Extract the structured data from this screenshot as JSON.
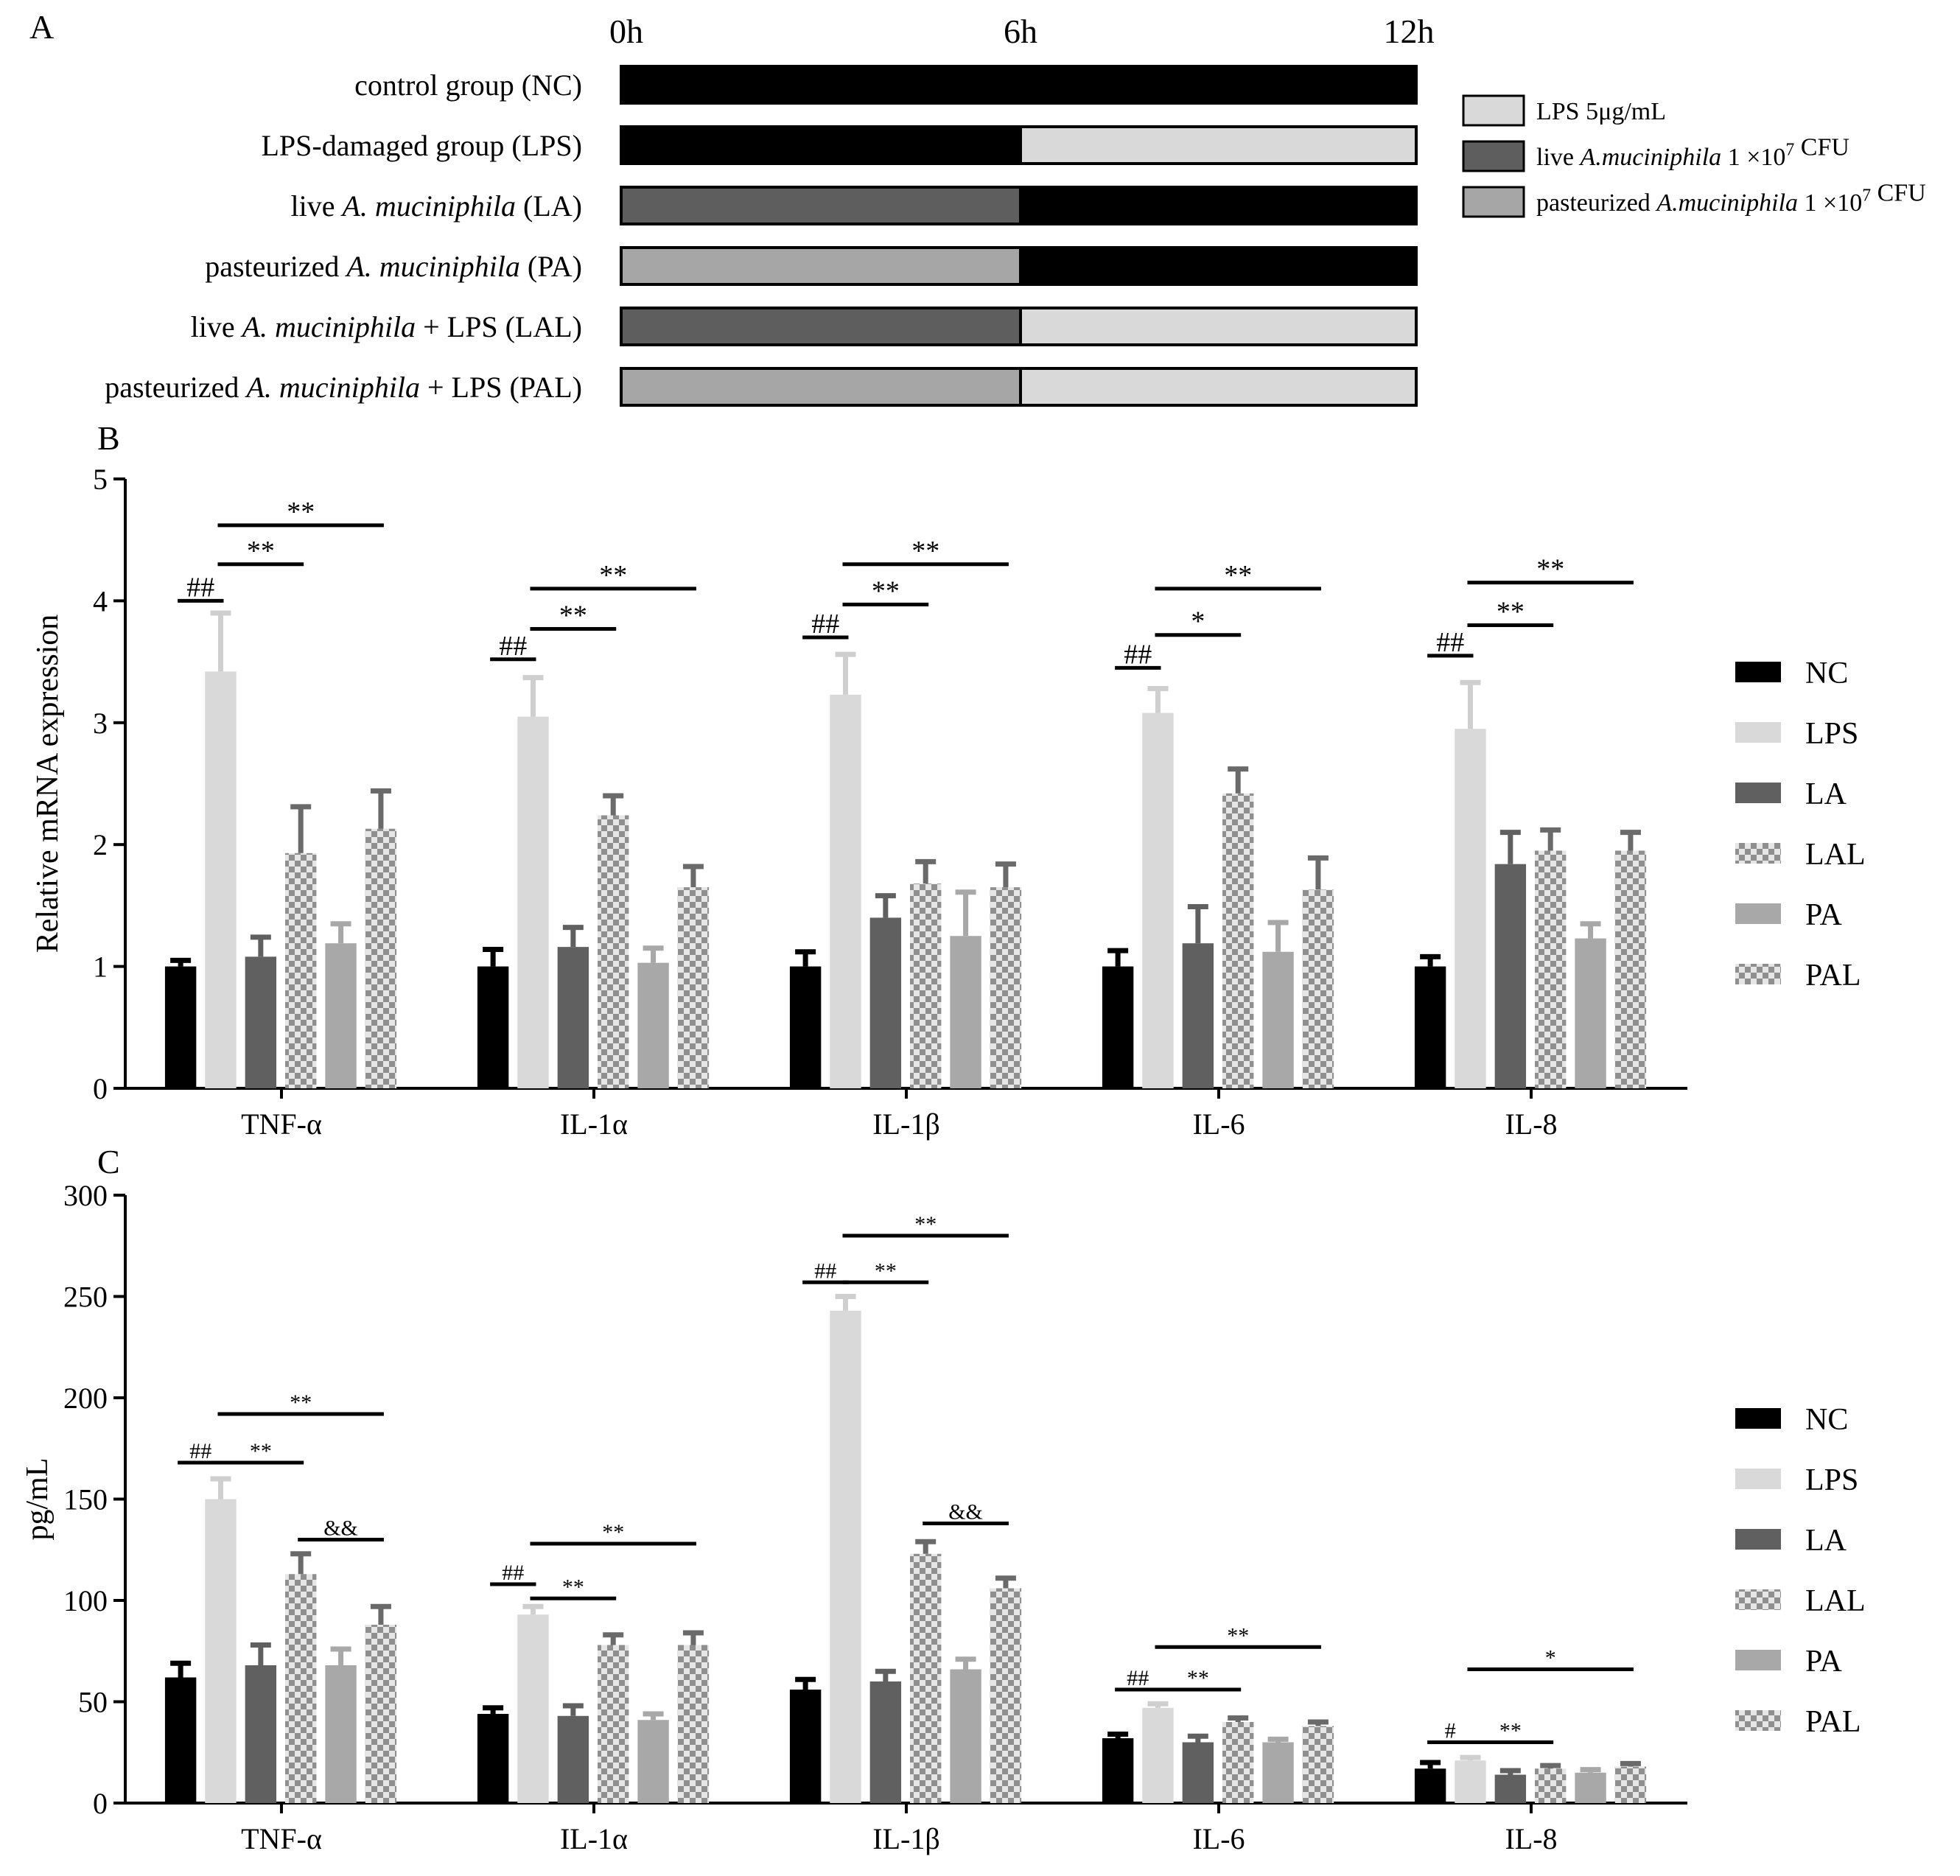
{
  "colors": {
    "NC": "#000000",
    "LPS": "#d9d9d9",
    "LA": "#606060",
    "LAL": "#777777",
    "PA": "#a8a8a8",
    "PAL": "#8a8a8a",
    "check_light": "#e6e6e6",
    "check_dark": "#8f8f8f",
    "timeline_dark": "#000000",
    "timeline_LPS": "#d9d9d9",
    "timeline_LA": "#5e5e5e",
    "timeline_PA": "#a6a6a6"
  },
  "panel_a": {
    "label": "A",
    "time_labels": [
      "0h",
      "6h",
      "12h"
    ],
    "rows": [
      {
        "parts": [
          {
            "t": "control group (NC)"
          }
        ],
        "seg1": "dark",
        "seg2": "dark"
      },
      {
        "parts": [
          {
            "t": "LPS-damaged group (LPS)"
          }
        ],
        "seg1": "dark",
        "seg2": "lps"
      },
      {
        "parts": [
          {
            "t": "live "
          },
          {
            "t": "A. muciniphila",
            "i": true
          },
          {
            "t": " (LA)"
          }
        ],
        "seg1": "la",
        "seg2": "dark"
      },
      {
        "parts": [
          {
            "t": "pasteurized "
          },
          {
            "t": "A. muciniphila",
            "i": true
          },
          {
            "t": " (PA)"
          }
        ],
        "seg1": "pa",
        "seg2": "dark"
      },
      {
        "parts": [
          {
            "t": "live "
          },
          {
            "t": "A. muciniphila",
            "i": true
          },
          {
            "t": " + LPS (LAL)"
          }
        ],
        "seg1": "la",
        "seg2": "lps"
      },
      {
        "parts": [
          {
            "t": "pasteurized "
          },
          {
            "t": "A. muciniphila",
            "i": true
          },
          {
            "t": " + LPS (PAL)"
          }
        ],
        "seg1": "pa",
        "seg2": "lps"
      }
    ],
    "legend": [
      {
        "key": "lps",
        "parts": [
          {
            "t": "LPS 5μg/mL"
          }
        ]
      },
      {
        "key": "la",
        "parts": [
          {
            "t": "live "
          },
          {
            "t": "A.muciniphila",
            "i": true
          },
          {
            "t": " 1 ×10"
          },
          {
            "t": "7",
            "sup": true
          },
          {
            "t": " CFU"
          }
        ]
      },
      {
        "key": "pa",
        "parts": [
          {
            "t": "pasteurized "
          },
          {
            "t": "A.muciniphila",
            "i": true
          },
          {
            "t": " 1 ×10"
          },
          {
            "t": "7",
            "sup": true
          },
          {
            "t": " CFU"
          }
        ]
      }
    ]
  },
  "chart_data": [
    {
      "panel": "B",
      "type": "bar",
      "title": "",
      "xlabel": "",
      "ylabel": "Relative mRNA expression",
      "ylim": [
        0,
        5
      ],
      "yticks": [
        "0",
        "1",
        "2",
        "3",
        "4",
        "5"
      ],
      "categories": [
        "TNF-α",
        "IL-1α",
        "IL-1β",
        "IL-6",
        "IL-8"
      ],
      "series": [
        {
          "name": "NC",
          "values": [
            1.0,
            1.0,
            1.0,
            1.0,
            1.0
          ],
          "errors": [
            0.05,
            0.14,
            0.12,
            0.13,
            0.08
          ]
        },
        {
          "name": "LPS",
          "values": [
            3.42,
            3.05,
            3.23,
            3.08,
            2.95
          ],
          "errors": [
            0.48,
            0.32,
            0.33,
            0.2,
            0.38
          ]
        },
        {
          "name": "LA",
          "values": [
            1.08,
            1.16,
            1.4,
            1.19,
            1.84
          ],
          "errors": [
            0.16,
            0.16,
            0.18,
            0.3,
            0.26
          ]
        },
        {
          "name": "LAL",
          "values": [
            1.93,
            2.24,
            1.68,
            2.42,
            1.95
          ],
          "errors": [
            0.38,
            0.16,
            0.18,
            0.2,
            0.17
          ]
        },
        {
          "name": "PA",
          "values": [
            1.19,
            1.03,
            1.25,
            1.12,
            1.23
          ],
          "errors": [
            0.16,
            0.12,
            0.36,
            0.24,
            0.12
          ]
        },
        {
          "name": "PAL",
          "values": [
            2.13,
            1.65,
            1.65,
            1.63,
            1.95
          ],
          "errors": [
            0.31,
            0.17,
            0.19,
            0.26,
            0.15
          ]
        }
      ],
      "annotations": [
        {
          "cat": 0,
          "from": "NC",
          "to": "LPS",
          "text": "##",
          "y": 4.0
        },
        {
          "cat": 0,
          "from": "LPS",
          "to": "LAL",
          "text": "**",
          "y": 4.3
        },
        {
          "cat": 0,
          "from": "LPS",
          "to": "PAL",
          "text": "**",
          "y": 4.62
        },
        {
          "cat": 1,
          "from": "NC",
          "to": "LPS",
          "text": "##",
          "y": 3.52
        },
        {
          "cat": 1,
          "from": "LPS",
          "to": "LAL",
          "text": "**",
          "y": 3.77
        },
        {
          "cat": 1,
          "from": "LPS",
          "to": "PAL",
          "text": "**",
          "y": 4.1
        },
        {
          "cat": 2,
          "from": "NC",
          "to": "LPS",
          "text": "##",
          "y": 3.7
        },
        {
          "cat": 2,
          "from": "LPS",
          "to": "LAL",
          "text": "**",
          "y": 3.97
        },
        {
          "cat": 2,
          "from": "LPS",
          "to": "PAL",
          "text": "**",
          "y": 4.3
        },
        {
          "cat": 3,
          "from": "NC",
          "to": "LPS",
          "text": "##",
          "y": 3.45
        },
        {
          "cat": 3,
          "from": "LPS",
          "to": "LAL",
          "text": "*",
          "y": 3.72
        },
        {
          "cat": 3,
          "from": "LPS",
          "to": "PAL",
          "text": "**",
          "y": 4.1
        },
        {
          "cat": 4,
          "from": "NC",
          "to": "LPS",
          "text": "##",
          "y": 3.55
        },
        {
          "cat": 4,
          "from": "LPS",
          "to": "LAL",
          "text": "**",
          "y": 3.8
        },
        {
          "cat": 4,
          "from": "LPS",
          "to": "PAL",
          "text": "**",
          "y": 4.15
        }
      ],
      "legend": [
        "NC",
        "LPS",
        "LA",
        "LAL",
        "PA",
        "PAL"
      ]
    },
    {
      "panel": "C",
      "type": "bar",
      "title": "",
      "xlabel": "",
      "ylabel": "pg/mL",
      "ylim": [
        0,
        300
      ],
      "yticks": [
        "0",
        "50",
        "100",
        "150",
        "200",
        "250",
        "300"
      ],
      "categories": [
        "TNF-α",
        "IL-1α",
        "IL-1β",
        "IL-6",
        "IL-8"
      ],
      "series": [
        {
          "name": "NC",
          "values": [
            62,
            44,
            56,
            32,
            17
          ],
          "errors": [
            7,
            3,
            5,
            2,
            3
          ]
        },
        {
          "name": "LPS",
          "values": [
            150,
            93,
            243,
            47,
            21
          ],
          "errors": [
            10,
            4,
            7,
            2,
            1.5
          ]
        },
        {
          "name": "LA",
          "values": [
            68,
            43,
            60,
            30,
            14
          ],
          "errors": [
            10,
            5,
            5,
            3,
            2
          ]
        },
        {
          "name": "LAL",
          "values": [
            113,
            78,
            123,
            40,
            17
          ],
          "errors": [
            10,
            5,
            6,
            2,
            1.5
          ]
        },
        {
          "name": "PA",
          "values": [
            68,
            41,
            66,
            30,
            15
          ],
          "errors": [
            8,
            3,
            5,
            1.5,
            1.5
          ]
        },
        {
          "name": "PAL",
          "values": [
            88,
            78,
            106,
            38,
            18
          ],
          "errors": [
            9,
            6,
            5,
            2,
            1.5
          ]
        }
      ],
      "annotations": [
        {
          "cat": 0,
          "from": "NC",
          "to": "LPS",
          "text": "##",
          "y": 168
        },
        {
          "cat": 0,
          "from": "LPS",
          "to": "LAL",
          "text": "**",
          "y": 168
        },
        {
          "cat": 0,
          "from": "LPS",
          "to": "PAL",
          "text": "**",
          "y": 192
        },
        {
          "cat": 0,
          "from": "LAL",
          "to": "PAL",
          "text": "&&",
          "y": 130
        },
        {
          "cat": 1,
          "from": "NC",
          "to": "LPS",
          "text": "##",
          "y": 108
        },
        {
          "cat": 1,
          "from": "LPS",
          "to": "LAL",
          "text": "**",
          "y": 101
        },
        {
          "cat": 1,
          "from": "LPS",
          "to": "PAL",
          "text": "**",
          "y": 128
        },
        {
          "cat": 2,
          "from": "NC",
          "to": "LPS",
          "text": "##",
          "y": 257
        },
        {
          "cat": 2,
          "from": "LPS",
          "to": "LAL",
          "text": "**",
          "y": 257
        },
        {
          "cat": 2,
          "from": "LPS",
          "to": "PAL",
          "text": "**",
          "y": 280
        },
        {
          "cat": 2,
          "from": "LAL",
          "to": "PAL",
          "text": "&&",
          "y": 138
        },
        {
          "cat": 3,
          "from": "NC",
          "to": "LPS",
          "text": "##",
          "y": 56
        },
        {
          "cat": 3,
          "from": "LPS",
          "to": "LAL",
          "text": "**",
          "y": 56
        },
        {
          "cat": 3,
          "from": "LPS",
          "to": "PAL",
          "text": "**",
          "y": 77
        },
        {
          "cat": 4,
          "from": "NC",
          "to": "LPS",
          "text": "#",
          "y": 30
        },
        {
          "cat": 4,
          "from": "LPS",
          "to": "LAL",
          "text": "**",
          "y": 30
        },
        {
          "cat": 4,
          "from": "LPS",
          "to": "PAL",
          "text": "*",
          "y": 66
        }
      ],
      "legend": [
        "NC",
        "LPS",
        "LA",
        "LAL",
        "PA",
        "PAL"
      ]
    }
  ]
}
